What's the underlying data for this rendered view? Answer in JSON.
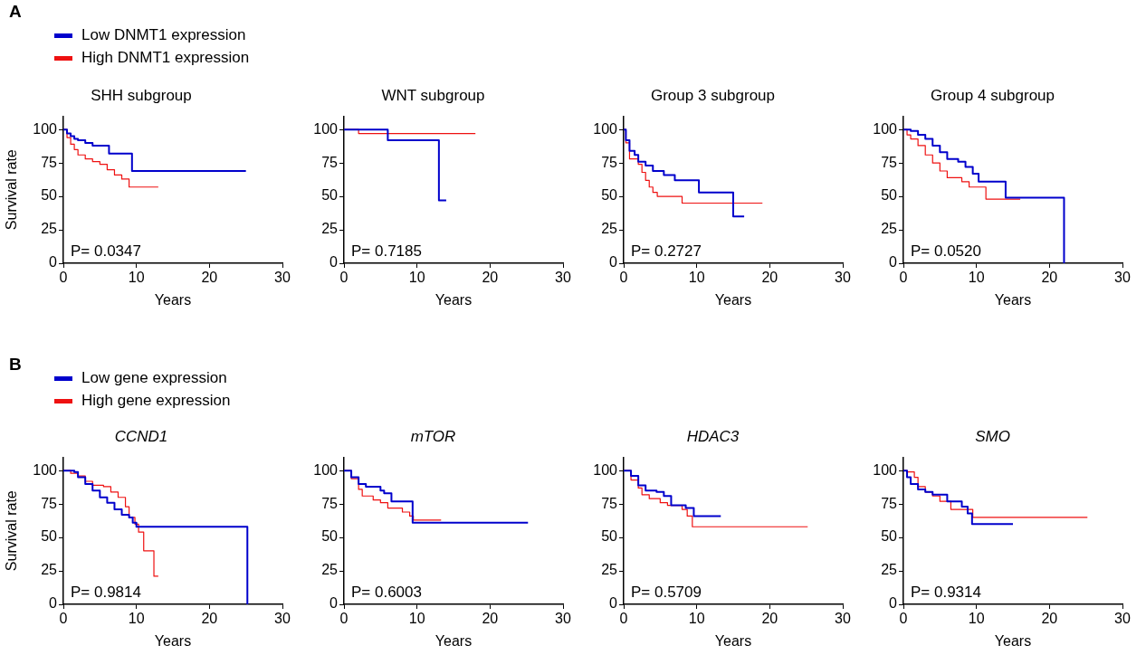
{
  "chart_data": [
    {
      "type": "step",
      "title": "SHH subgroup",
      "xlabel": "Years",
      "ylabel": "Survival rate",
      "xlim": [
        0,
        30
      ],
      "xticks": [
        0,
        10,
        20,
        30
      ],
      "ylim": [
        0,
        110
      ],
      "yticks": [
        0,
        25,
        50,
        75,
        100
      ],
      "legend": "top left",
      "annotations": [
        "A",
        "P= 0.0347"
      ],
      "series": [
        {
          "name": "Low DNMT1 expression",
          "color": "#0000cc",
          "x": [
            0,
            0.5,
            1,
            1.5,
            2,
            3,
            4,
            5,
            6.25,
            9.4,
            25
          ],
          "values": [
            100,
            97,
            95,
            93,
            92,
            90,
            88,
            88,
            82,
            69,
            69
          ]
        },
        {
          "name": "High DNMT1 expression",
          "color": "#ee1111",
          "x": [
            0,
            0.5,
            1,
            1.5,
            2,
            3,
            4,
            5,
            6,
            7,
            8,
            9,
            13
          ],
          "values": [
            100,
            94,
            89,
            85,
            81,
            78,
            76,
            74,
            70,
            66,
            63,
            57,
            57
          ]
        }
      ]
    },
    {
      "type": "step",
      "title": "WNT subgroup",
      "xlabel": "Years",
      "xlim": [
        0,
        30
      ],
      "xticks": [
        0,
        10,
        20,
        30
      ],
      "ylim": [
        0,
        110
      ],
      "yticks": [
        0,
        25,
        50,
        75,
        100
      ],
      "annotations": [
        "P= 0.7185"
      ],
      "series": [
        {
          "color": "#0000cc",
          "x": [
            0,
            6,
            13,
            14
          ],
          "values": [
            100,
            92,
            47,
            47
          ]
        },
        {
          "color": "#ee1111",
          "x": [
            0,
            2,
            18
          ],
          "values": [
            100,
            97,
            97
          ]
        }
      ]
    },
    {
      "type": "step",
      "title": "Group 3 subgroup",
      "xlabel": "Years",
      "xlim": [
        0,
        30
      ],
      "xticks": [
        0,
        10,
        20,
        30
      ],
      "ylim": [
        0,
        110
      ],
      "yticks": [
        0,
        25,
        50,
        75,
        100
      ],
      "annotations": [
        "P= 0.2727"
      ],
      "series": [
        {
          "color": "#0000cc",
          "x": [
            0,
            0.3,
            0.8,
            1.5,
            2,
            3,
            4,
            5.5,
            7,
            10.3,
            15,
            16.5
          ],
          "values": [
            100,
            92,
            84,
            81,
            76,
            73,
            69,
            66,
            62,
            53,
            35,
            35
          ]
        },
        {
          "color": "#ee1111",
          "x": [
            0,
            0.3,
            0.8,
            2,
            2.5,
            3,
            3.5,
            4,
            4.6,
            8,
            19
          ],
          "values": [
            100,
            90,
            78,
            74,
            68,
            62,
            57,
            53,
            50,
            45,
            45
          ]
        }
      ]
    },
    {
      "type": "step",
      "title": "Group 4 subgroup",
      "xlabel": "Years",
      "xlim": [
        0,
        30
      ],
      "xticks": [
        0,
        10,
        20,
        30
      ],
      "ylim": [
        0,
        110
      ],
      "yticks": [
        0,
        25,
        50,
        75,
        100
      ],
      "annotations": [
        "P= 0.0520"
      ],
      "series": [
        {
          "color": "#0000cc",
          "x": [
            0,
            1,
            2,
            3,
            4,
            5,
            6,
            7.5,
            8.5,
            9.5,
            10.3,
            14,
            22
          ],
          "values": [
            100,
            99,
            96,
            93,
            88,
            83,
            78,
            76,
            72,
            67,
            61,
            49,
            0
          ]
        },
        {
          "color": "#ee1111",
          "x": [
            0,
            0.5,
            1,
            2,
            3,
            4,
            5,
            6,
            8,
            9,
            11.3,
            16
          ],
          "values": [
            100,
            96,
            93,
            88,
            81,
            75,
            69,
            64,
            61,
            57,
            48,
            48
          ]
        }
      ]
    },
    {
      "type": "step",
      "title": "CCND1",
      "xlabel": "Years",
      "ylabel": "Survival rate",
      "xlim": [
        0,
        30
      ],
      "xticks": [
        0,
        10,
        20,
        30
      ],
      "ylim": [
        0,
        110
      ],
      "yticks": [
        0,
        25,
        50,
        75,
        100
      ],
      "legend": "top left",
      "annotations": [
        "B",
        "P= 0.9814"
      ],
      "series": [
        {
          "name": "Low gene expression",
          "color": "#0000cc",
          "x": [
            0,
            1.5,
            2,
            3,
            4,
            5,
            6,
            7,
            8,
            9,
            9.5,
            10,
            25.2
          ],
          "values": [
            100,
            99,
            95,
            90,
            85,
            80,
            76,
            71,
            67,
            65,
            61,
            58,
            0
          ]
        },
        {
          "name": "High gene expression",
          "color": "#ee1111",
          "x": [
            0,
            1,
            2,
            3,
            4,
            5.5,
            6.5,
            7.5,
            8.5,
            9,
            9.8,
            10.3,
            11,
            12.4,
            13
          ],
          "values": [
            100,
            98,
            96,
            92,
            89,
            88,
            84,
            80,
            73,
            65,
            60,
            54,
            40,
            21,
            21
          ]
        }
      ]
    },
    {
      "type": "step",
      "title": "mTOR",
      "xlabel": "Years",
      "xlim": [
        0,
        30
      ],
      "xticks": [
        0,
        10,
        20,
        30
      ],
      "ylim": [
        0,
        110
      ],
      "yticks": [
        0,
        25,
        50,
        75,
        100
      ],
      "annotations": [
        "P= 0.6003"
      ],
      "series": [
        {
          "color": "#0000cc",
          "x": [
            0,
            1,
            2,
            3,
            5,
            5.5,
            6.5,
            9.4,
            25.2
          ],
          "values": [
            100,
            95,
            90,
            88,
            85,
            83,
            77,
            61,
            61
          ]
        },
        {
          "color": "#ee1111",
          "x": [
            0,
            1,
            2,
            2.5,
            4,
            5,
            6,
            8,
            9,
            9.5,
            13.3
          ],
          "values": [
            100,
            94,
            86,
            81,
            78,
            76,
            72,
            69,
            66,
            63,
            63
          ]
        }
      ]
    },
    {
      "type": "step",
      "title": "HDAC3",
      "xlabel": "Years",
      "xlim": [
        0,
        30
      ],
      "xticks": [
        0,
        10,
        20,
        30
      ],
      "ylim": [
        0,
        110
      ],
      "yticks": [
        0,
        25,
        50,
        75,
        100
      ],
      "annotations": [
        "P= 0.5709"
      ],
      "series": [
        {
          "color": "#0000cc",
          "x": [
            0,
            1,
            2,
            3,
            4.5,
            5.5,
            6.5,
            8.5,
            9.6,
            13.3
          ],
          "values": [
            100,
            96,
            89,
            85,
            84,
            81,
            74,
            72,
            66,
            66
          ]
        },
        {
          "color": "#ee1111",
          "x": [
            0,
            1,
            2,
            2.5,
            3.5,
            5,
            6,
            8,
            8.7,
            9.4,
            25.2
          ],
          "values": [
            100,
            93,
            87,
            82,
            79,
            76,
            74,
            71,
            66,
            58,
            58
          ]
        }
      ]
    },
    {
      "type": "step",
      "title": "SMO",
      "xlabel": "Years",
      "xlim": [
        0,
        30
      ],
      "xticks": [
        0,
        10,
        20,
        30
      ],
      "ylim": [
        0,
        110
      ],
      "yticks": [
        0,
        25,
        50,
        75,
        100
      ],
      "annotations": [
        "P= 0.9314"
      ],
      "series": [
        {
          "color": "#0000cc",
          "x": [
            0,
            0.5,
            1,
            2,
            3,
            4,
            6,
            8,
            8.8,
            9.4,
            15
          ],
          "values": [
            100,
            95,
            90,
            86,
            84,
            82,
            77,
            73,
            68,
            60,
            60
          ]
        },
        {
          "color": "#ee1111",
          "x": [
            0,
            0.5,
            1.5,
            2,
            3,
            4,
            5,
            6.5,
            9.5,
            25.2
          ],
          "values": [
            100,
            99,
            95,
            88,
            84,
            81,
            77,
            71,
            65,
            65
          ]
        }
      ]
    }
  ]
}
